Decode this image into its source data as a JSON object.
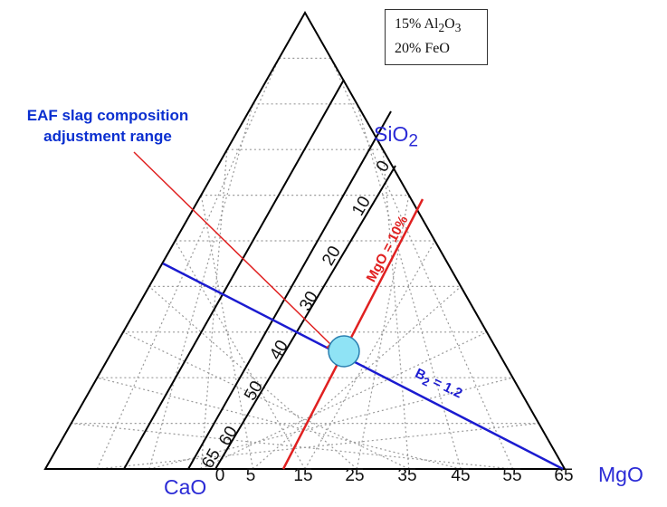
{
  "legend": {
    "line1_prefix": "15% Al",
    "line1_sub1": "2",
    "line1_mid": "O",
    "line1_sub2": "3",
    "line2": "20% FeO"
  },
  "annotation": {
    "line1": "EAF slag composition",
    "line2": "adjustment range"
  },
  "apex_labels": {
    "sio2_main": "SiO",
    "sio2_sub": "2",
    "cao": "CaO",
    "mgo": "MgO"
  },
  "bottom_ticks": [
    "0",
    "5",
    "15",
    "25",
    "35",
    "45",
    "55",
    "65"
  ],
  "left_ticks": [
    "0",
    "10",
    "20",
    "30",
    "40",
    "50",
    "60",
    "65"
  ],
  "line_labels": {
    "mgo_line": "MgO = 10%",
    "b2_line_main": "B",
    "b2_line_sub": "2",
    "b2_line_rest": " = 1.2"
  },
  "colors": {
    "sio2_iso": "#000000",
    "mgo_line": "#e02020",
    "basicity_line": "#1b1bd0",
    "marker_fill": "#8fe3f5",
    "marker_stroke": "#2a7fb0",
    "annotation": "#0a2fd0",
    "arrow": "#e02020"
  }
}
